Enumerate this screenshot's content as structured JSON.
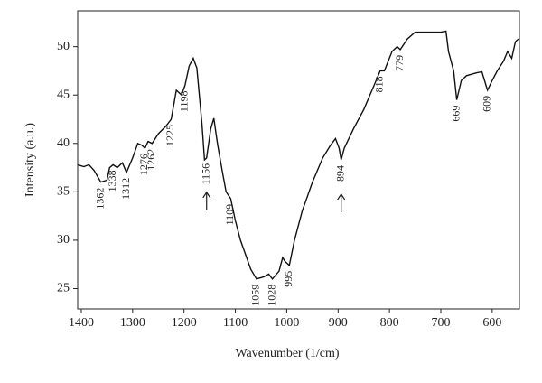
{
  "chart_data": {
    "type": "line",
    "xlabel": "Wavenumber (1/cm)",
    "ylabel": "Intensity (a.u.)",
    "xlim": [
      1407,
      547
    ],
    "ylim": [
      22.9,
      53.7
    ],
    "xticks": [
      1400,
      1300,
      1200,
      1100,
      1000,
      900,
      800,
      700,
      600
    ],
    "yticks": [
      25,
      30,
      35,
      40,
      45,
      50
    ],
    "color": "#111111",
    "x": [
      1407,
      1395,
      1385,
      1375,
      1362,
      1350,
      1345,
      1338,
      1330,
      1320,
      1312,
      1300,
      1290,
      1282,
      1276,
      1270,
      1262,
      1250,
      1235,
      1225,
      1215,
      1205,
      1198,
      1190,
      1182,
      1175,
      1165,
      1160,
      1156,
      1148,
      1142,
      1135,
      1125,
      1118,
      1109,
      1100,
      1090,
      1080,
      1070,
      1059,
      1045,
      1035,
      1028,
      1015,
      1008,
      1003,
      995,
      985,
      970,
      950,
      930,
      915,
      905,
      898,
      894,
      888,
      870,
      850,
      830,
      818,
      810,
      795,
      785,
      779,
      765,
      750,
      720,
      700,
      690,
      685,
      675,
      669,
      660,
      650,
      630,
      620,
      612,
      609,
      600,
      590,
      578,
      570,
      562,
      555,
      549
    ],
    "values": [
      37.8,
      37.6,
      37.8,
      37.2,
      36.0,
      36.2,
      37.5,
      37.8,
      37.5,
      38.0,
      37.0,
      38.5,
      40.0,
      39.8,
      39.5,
      40.2,
      40.0,
      41.0,
      41.8,
      42.5,
      45.5,
      45.0,
      46.0,
      48.0,
      48.8,
      47.8,
      42.0,
      38.3,
      38.5,
      41.5,
      42.6,
      40.0,
      37.0,
      35.0,
      34.3,
      32.0,
      30.0,
      28.5,
      27.0,
      26.0,
      26.2,
      26.5,
      26.0,
      26.8,
      28.2,
      27.8,
      27.4,
      30.0,
      33.0,
      36.0,
      38.5,
      39.8,
      40.5,
      39.5,
      38.3,
      39.5,
      41.5,
      43.5,
      46.0,
      47.5,
      47.5,
      49.5,
      50.0,
      49.7,
      50.8,
      51.5,
      51.5,
      51.5,
      51.6,
      49.5,
      47.5,
      44.5,
      46.5,
      47.0,
      47.3,
      47.4,
      46.0,
      45.5,
      46.5,
      47.5,
      48.5,
      49.5,
      48.8,
      50.5,
      50.8
    ],
    "annotations": [
      {
        "text": "1362",
        "x": 1362
      },
      {
        "text": "1338",
        "x": 1338
      },
      {
        "text": "1312",
        "x": 1312
      },
      {
        "text": "1276",
        "x": 1276
      },
      {
        "text": "1262",
        "x": 1262
      },
      {
        "text": "1225",
        "x": 1225
      },
      {
        "text": "1198",
        "x": 1198
      },
      {
        "text": "1156",
        "x": 1156,
        "arrow": true
      },
      {
        "text": "1109",
        "x": 1109
      },
      {
        "text": "1059",
        "x": 1059
      },
      {
        "text": "1028",
        "x": 1028
      },
      {
        "text": "995",
        "x": 995
      },
      {
        "text": "894",
        "x": 894,
        "arrow": true
      },
      {
        "text": "818",
        "x": 818
      },
      {
        "text": "779",
        "x": 779
      },
      {
        "text": "669",
        "x": 669
      },
      {
        "text": "609",
        "x": 609
      }
    ]
  }
}
